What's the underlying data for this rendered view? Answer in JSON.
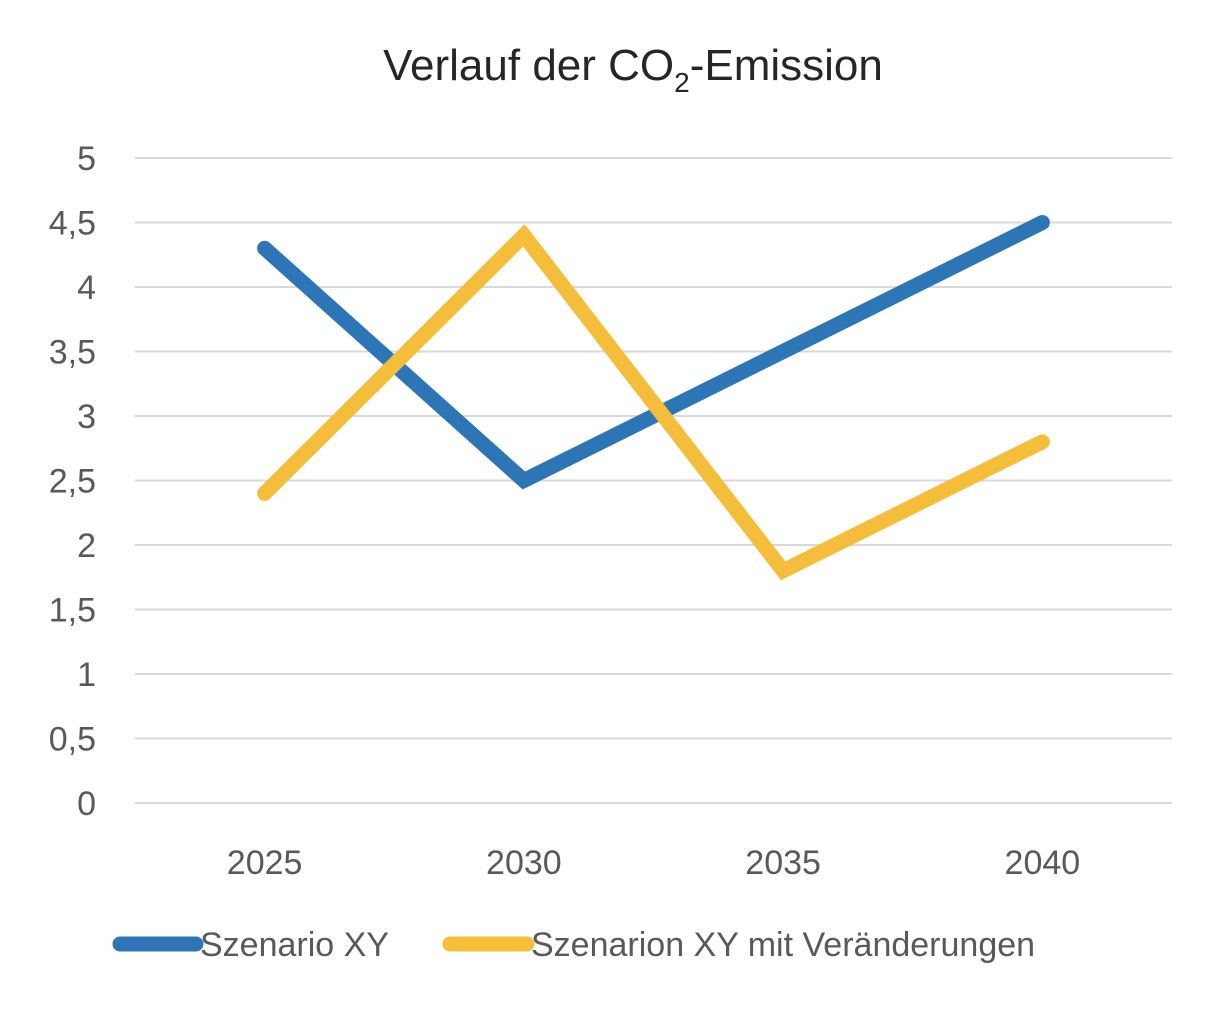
{
  "chart_data": {
    "type": "line",
    "title": {
      "prefix": "Verlauf der CO",
      "subscript": "2",
      "suffix": "-Emission"
    },
    "categories": [
      "2025",
      "2030",
      "2035",
      "2040"
    ],
    "series": [
      {
        "name": "Szenario XY",
        "color": "#2E75B6",
        "values": [
          4.3,
          2.5,
          3.5,
          4.5
        ]
      },
      {
        "name": "Szenarion XY mit Veränderungen",
        "color": "#F4BE3C",
        "values": [
          2.4,
          4.4,
          1.8,
          2.8
        ]
      }
    ],
    "y_ticks": [
      "0",
      "0,5",
      "1",
      "1,5",
      "2",
      "2,5",
      "3",
      "3,5",
      "4",
      "4,5",
      "5"
    ],
    "ylim": [
      0,
      5
    ],
    "grid": true,
    "legend_position": "bottom"
  }
}
